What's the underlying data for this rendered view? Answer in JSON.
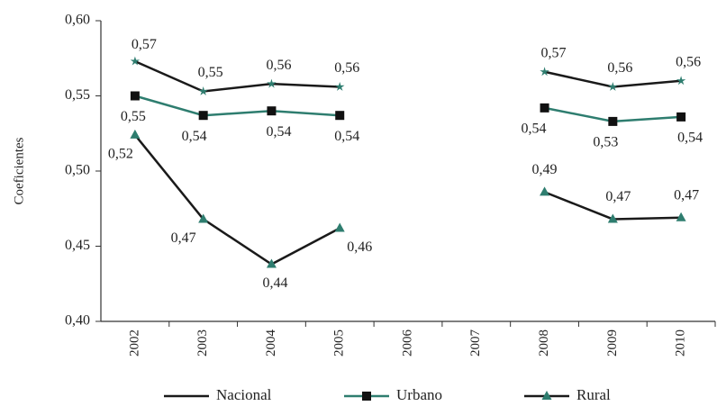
{
  "chart_data": {
    "type": "line",
    "y_label": "Coeficientes",
    "categories": [
      "2002",
      "2003",
      "2004",
      "2005",
      "2006",
      "2007",
      "2008",
      "2009",
      "2010"
    ],
    "series": [
      {
        "name": "Nacional",
        "color": "#1a1a1a",
        "marker": "star",
        "marker_color": "#2e7d6f",
        "values": [
          0.573,
          0.553,
          0.558,
          0.556,
          null,
          null,
          0.566,
          0.556,
          0.56
        ],
        "value_labels": [
          "0,57",
          "0,55",
          "0,56",
          "0,56",
          null,
          null,
          "0,57",
          "0,56",
          "0,56"
        ]
      },
      {
        "name": "Urbano",
        "color": "#2e7d6f",
        "marker": "square",
        "marker_color": "#111111",
        "values": [
          0.55,
          0.537,
          0.54,
          0.537,
          null,
          null,
          0.542,
          0.533,
          0.536
        ],
        "value_labels": [
          "0,55",
          "0,54",
          "0,54",
          "0,54",
          null,
          null,
          "0,54",
          "0,53",
          "0,54"
        ]
      },
      {
        "name": "Rural",
        "color": "#1a1a1a",
        "marker": "triangle",
        "marker_color": "#2e7d6f",
        "values": [
          0.524,
          0.468,
          0.438,
          0.462,
          null,
          null,
          0.486,
          0.468,
          0.469
        ],
        "value_labels": [
          "0,52",
          "0,47",
          "0,44",
          "0,46",
          null,
          null,
          "0,49",
          "0,47",
          "0,47"
        ]
      }
    ],
    "ylim": [
      0.4,
      0.6
    ],
    "yticks": [
      {
        "value": 0.4,
        "label": "0,40"
      },
      {
        "value": 0.45,
        "label": "0,45"
      },
      {
        "value": 0.5,
        "label": "0,50"
      },
      {
        "value": 0.55,
        "label": "0,55"
      },
      {
        "value": 0.6,
        "label": "0,60"
      }
    ],
    "grid": false
  }
}
